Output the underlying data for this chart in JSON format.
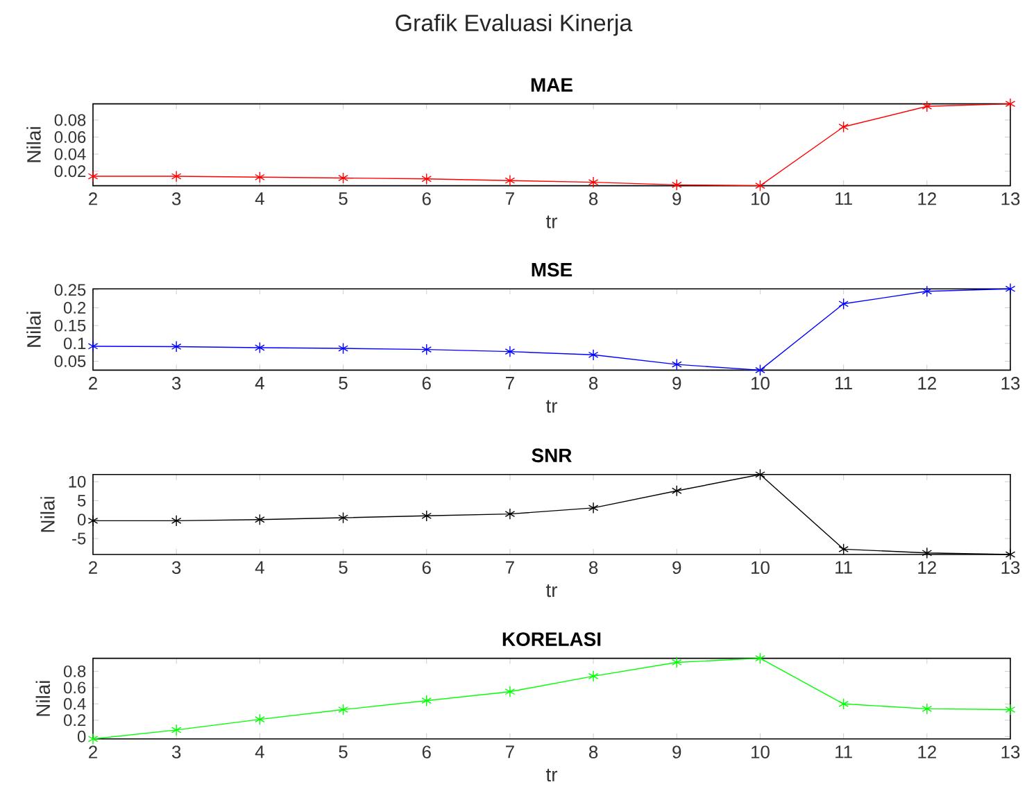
{
  "chart_data": [
    {
      "type": "line",
      "title": "Grafik Evaluasi Kinerja",
      "subtitle": "MAE",
      "xlabel": "tr",
      "ylabel": "Nilai",
      "x": [
        2,
        3,
        4,
        5,
        6,
        7,
        8,
        9,
        10,
        11,
        12,
        13
      ],
      "values": [
        0.014,
        0.014,
        0.013,
        0.012,
        0.011,
        0.009,
        0.007,
        0.004,
        0.003,
        0.072,
        0.096,
        0.099
      ],
      "color": "#ff0000",
      "marker": "cross",
      "line_style": "solid",
      "xlim": [
        2,
        13
      ],
      "xticks": [
        2,
        3,
        4,
        5,
        6,
        7,
        8,
        9,
        10,
        11,
        12,
        13
      ],
      "ylim": [
        0.003,
        0.099
      ],
      "yticks": [
        0.02,
        0.04,
        0.06,
        0.08
      ]
    },
    {
      "type": "line",
      "title": "MSE",
      "xlabel": "tr",
      "ylabel": "Nilai",
      "x": [
        2,
        3,
        4,
        5,
        6,
        7,
        8,
        9,
        10,
        11,
        12,
        13
      ],
      "values": [
        0.092,
        0.091,
        0.088,
        0.086,
        0.083,
        0.077,
        0.068,
        0.041,
        0.025,
        0.211,
        0.246,
        0.253
      ],
      "color": "#0000ff",
      "marker": "cross",
      "line_style": "solid",
      "xlim": [
        2,
        13
      ],
      "xticks": [
        2,
        3,
        4,
        5,
        6,
        7,
        8,
        9,
        10,
        11,
        12,
        13
      ],
      "ylim": [
        0.025,
        0.253
      ],
      "yticks": [
        0.05,
        0.1,
        0.15,
        0.2,
        0.25
      ]
    },
    {
      "type": "line",
      "title": "SNR",
      "xlabel": "tr",
      "ylabel": "Nilai",
      "x": [
        2,
        3,
        4,
        5,
        6,
        7,
        8,
        9,
        10,
        11,
        12,
        13
      ],
      "values": [
        -0.3,
        -0.3,
        0.0,
        0.5,
        1.0,
        1.5,
        3.1,
        7.6,
        11.9,
        -7.8,
        -8.8,
        -9.2
      ],
      "color": "#000000",
      "marker": "cross",
      "line_style": "solid",
      "xlim": [
        2,
        13
      ],
      "xticks": [
        2,
        3,
        4,
        5,
        6,
        7,
        8,
        9,
        10,
        11,
        12,
        13
      ],
      "ylim": [
        -9.2,
        11.9
      ],
      "yticks": [
        -5,
        0,
        5,
        10
      ]
    },
    {
      "type": "line",
      "title": "KORELASI",
      "xlabel": "tr",
      "ylabel": "Nilai",
      "x": [
        2,
        3,
        4,
        5,
        6,
        7,
        8,
        9,
        10,
        11,
        12,
        13
      ],
      "values": [
        -0.03,
        0.08,
        0.21,
        0.33,
        0.44,
        0.55,
        0.74,
        0.91,
        0.96,
        0.4,
        0.34,
        0.33
      ],
      "color": "#00ff00",
      "marker": "cross",
      "line_style": "solid",
      "xlim": [
        2,
        13
      ],
      "xticks": [
        2,
        3,
        4,
        5,
        6,
        7,
        8,
        9,
        10,
        11,
        12,
        13
      ],
      "ylim": [
        -0.03,
        0.96
      ],
      "yticks": [
        0,
        0.2,
        0.4,
        0.6,
        0.8
      ]
    }
  ]
}
